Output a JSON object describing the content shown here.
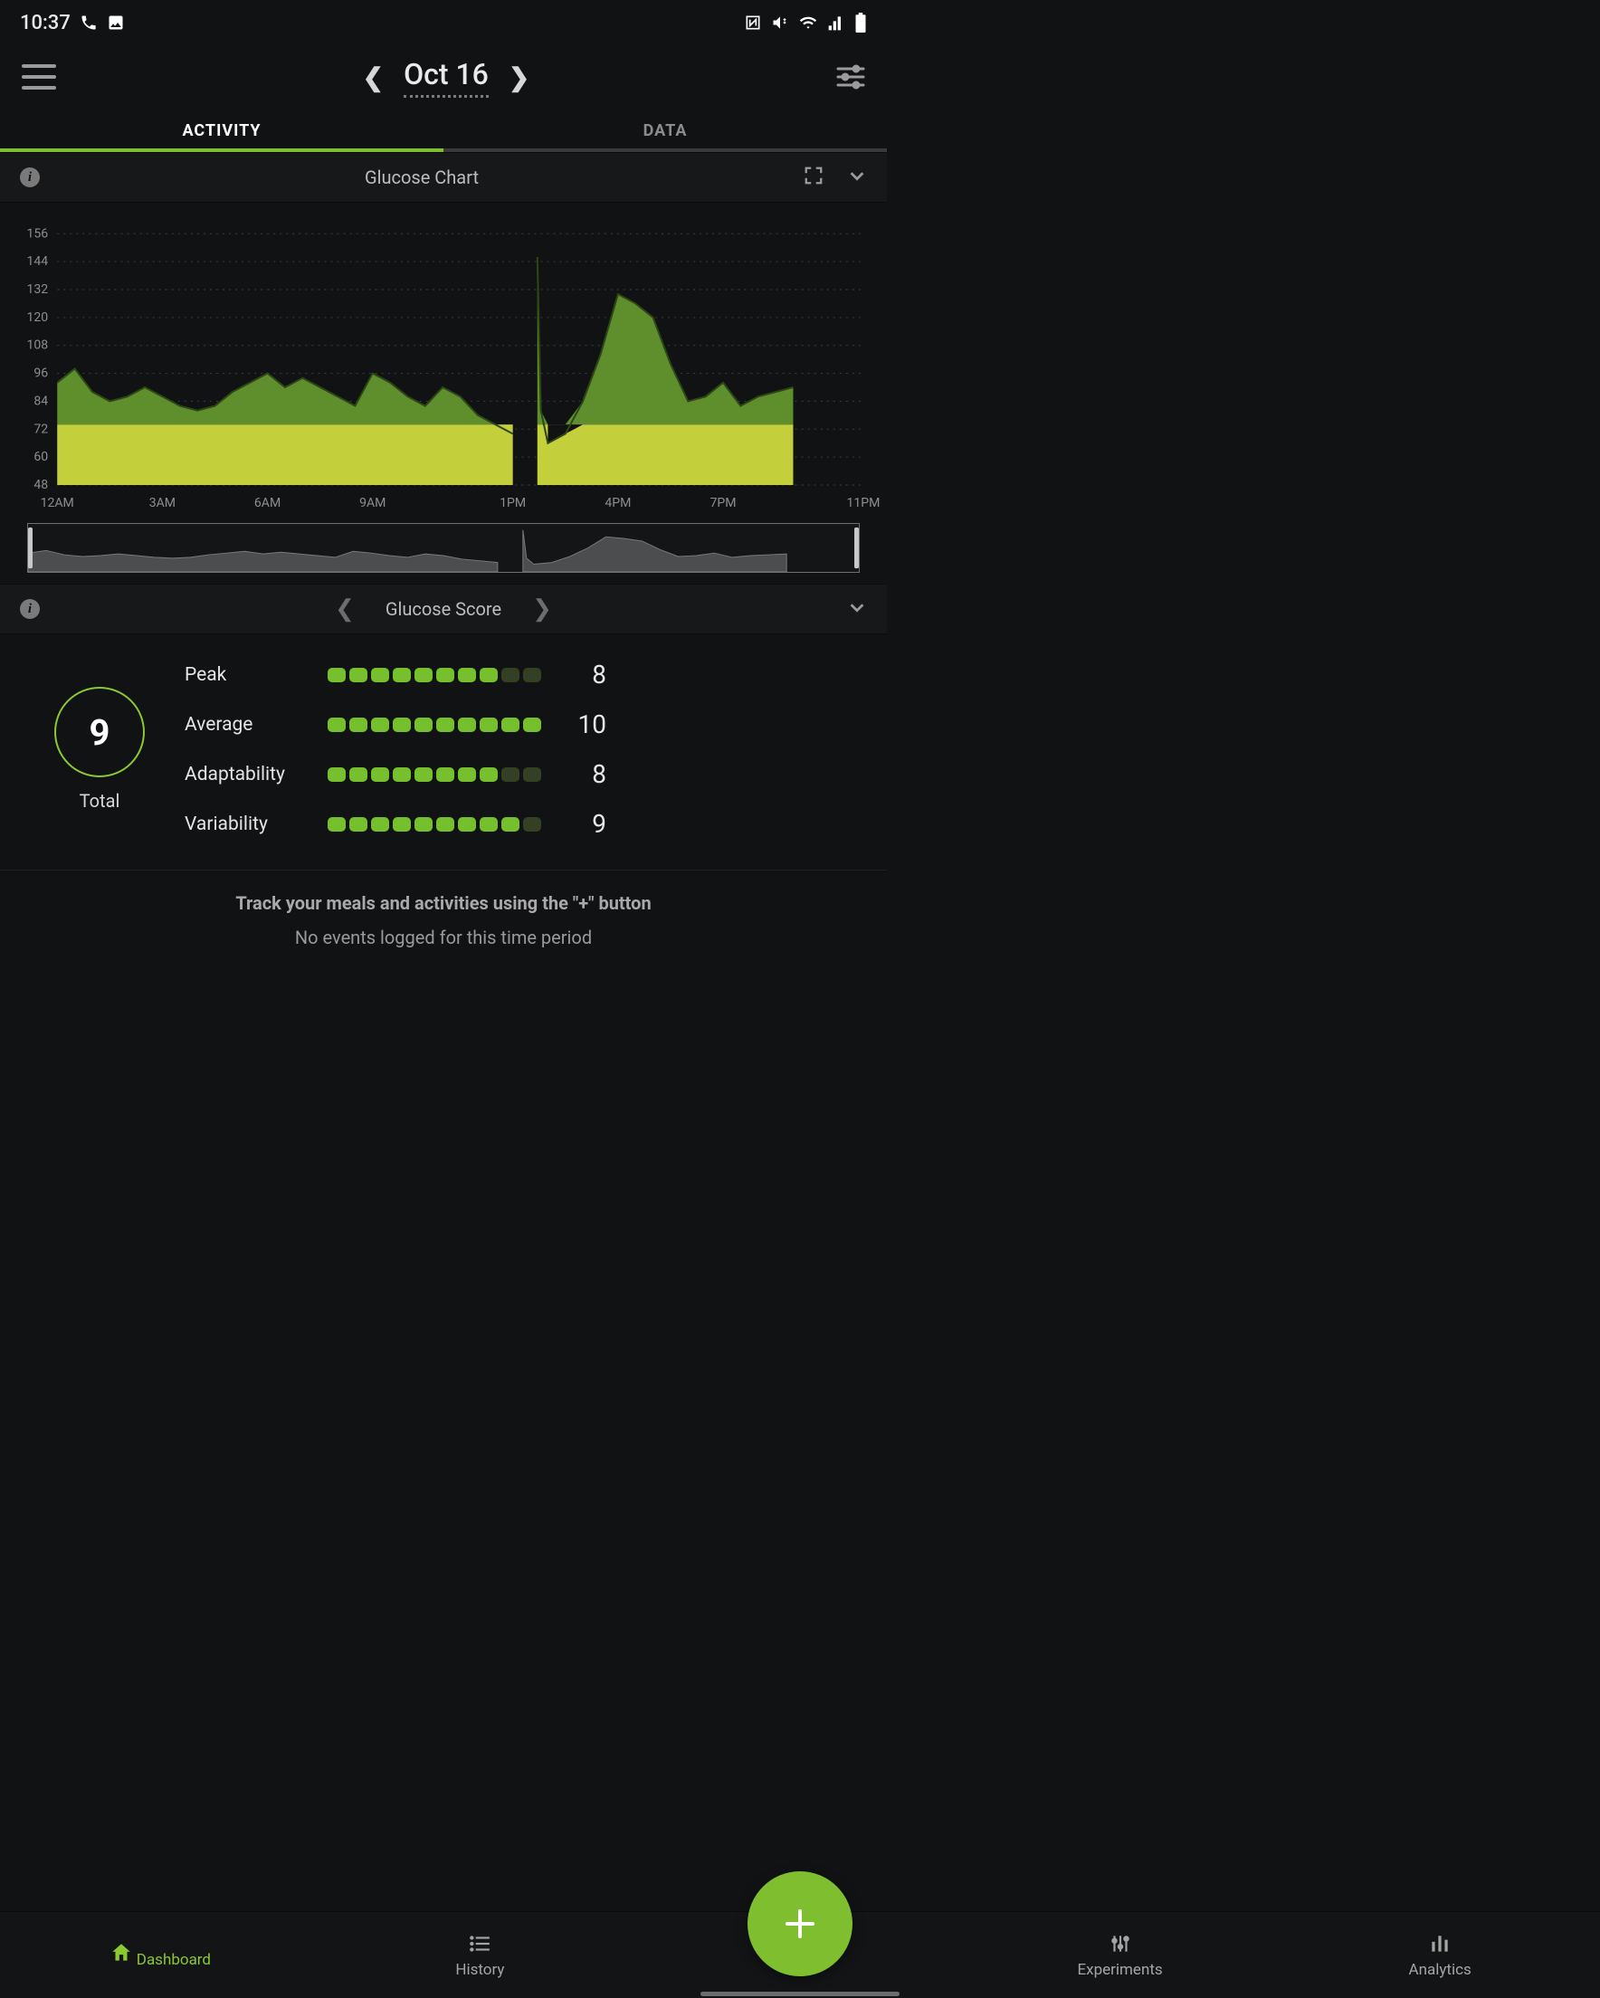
{
  "status": {
    "time": "10:37"
  },
  "header": {
    "date": "Oct 16"
  },
  "tabs": {
    "activity": "ACTIVITY",
    "data": "DATA",
    "underline_active_color": "#7fbf2f",
    "underline_inactive_color": "#3a3a3a"
  },
  "glucose_chart": {
    "title": "Glucose Chart",
    "type": "area",
    "ylim": [
      48,
      160
    ],
    "yticks": [
      48,
      60,
      72,
      84,
      96,
      108,
      120,
      132,
      144,
      156
    ],
    "xticks": [
      "12AM",
      "3AM",
      "6AM",
      "9AM",
      "1PM",
      "4PM",
      "7PM",
      "11PM"
    ],
    "xtick_positions": [
      0,
      3,
      6,
      9,
      13,
      16,
      19,
      23
    ],
    "xlim": [
      0,
      23
    ],
    "band_range": [
      48,
      74
    ],
    "band_color": "#c4cf3c",
    "area_color": "#5f8f2d",
    "stroke_color": "#2e4716",
    "grid_color": "#3c3d3f",
    "axis_text_color": "#8e8e8e",
    "label_fontsize": 12,
    "segments": [
      {
        "x": [
          0,
          0.5,
          1,
          1.5,
          2,
          2.5,
          3,
          3.5,
          4,
          4.5,
          5,
          5.5,
          6,
          6.5,
          7,
          7.5,
          8,
          8.5,
          9,
          9.5,
          10,
          10.5,
          11,
          11.5,
          12,
          12.5,
          13
        ],
        "y": [
          92,
          98,
          88,
          84,
          86,
          90,
          86,
          82,
          80,
          82,
          88,
          92,
          96,
          90,
          94,
          90,
          86,
          82,
          96,
          92,
          86,
          82,
          90,
          86,
          78,
          74,
          70
        ]
      },
      {
        "x": [
          13.7,
          13.8,
          14,
          14.5,
          15,
          15.5,
          16,
          16.5,
          17,
          17.5,
          18,
          18.5,
          19,
          19.5,
          20,
          20.5,
          21
        ],
        "y": [
          146,
          80,
          66,
          70,
          84,
          104,
          130,
          126,
          120,
          100,
          84,
          86,
          92,
          82,
          86,
          88,
          90
        ]
      }
    ],
    "mini": {
      "stroke_color": "#7a7a7a",
      "fill_color": "#4c4d4f",
      "handle_color": "#c8c8c8"
    }
  },
  "glucose_score": {
    "title": "Glucose Score",
    "total_label": "Total",
    "total_value": "9",
    "circle_border_color": "#8bc832",
    "pip_on_color": "#75c02c",
    "pip_off_color": "#344023",
    "max_pips": 10,
    "metrics": [
      {
        "label": "Peak",
        "filled": 8,
        "value": "8"
      },
      {
        "label": "Average",
        "filled": 10,
        "value": "10"
      },
      {
        "label": "Adaptability",
        "filled": 8,
        "value": "8"
      },
      {
        "label": "Variability",
        "filled": 9,
        "value": "9"
      }
    ]
  },
  "prompt": {
    "line1": "Track your meals and activities using the \"+\" button",
    "line2": "No events logged for this time period"
  },
  "nav": {
    "items": [
      {
        "label": "Dashboard",
        "active": true
      },
      {
        "label": "History",
        "active": false
      },
      {
        "label": "Experiments",
        "active": false
      },
      {
        "label": "Analytics",
        "active": false
      }
    ],
    "active_color": "#8bc832",
    "inactive_color": "#a5a5a5"
  },
  "fab": {
    "bg": "#7fbf2f"
  }
}
